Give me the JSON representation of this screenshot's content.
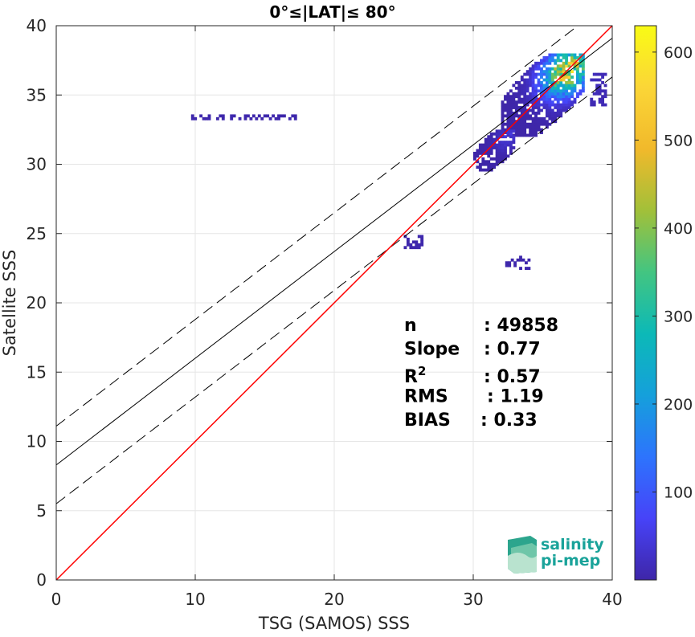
{
  "chart_data": {
    "type": "heatmap",
    "title": "0°≤|LAT|≤ 80°",
    "xlabel": "TSG (SAMOS) SSS",
    "ylabel": "Satellite SSS",
    "xlim": [
      0,
      40
    ],
    "ylim": [
      0,
      40
    ],
    "xticks": [
      0,
      10,
      20,
      30,
      40
    ],
    "yticks": [
      0,
      5,
      10,
      15,
      20,
      25,
      30,
      35,
      40
    ],
    "grid": true,
    "colorbar": {
      "ticks": [
        100,
        200,
        300,
        400,
        500,
        600
      ],
      "range": [
        0,
        630
      ],
      "colormap": [
        "#3e26a8",
        "#4743f8",
        "#2d74fd",
        "#15a0db",
        "#0cb9b7",
        "#43c581",
        "#a2c039",
        "#f1b92b",
        "#fbd637",
        "#f9fb15"
      ]
    },
    "stats": [
      {
        "name": "n",
        "value": "49858"
      },
      {
        "name": "Slope",
        "value": "0.77"
      },
      {
        "name": "R",
        "sup": "2",
        "value": "0.57"
      },
      {
        "name": "RMS",
        "value": "1.19"
      },
      {
        "name": "BIAS",
        "value": "0.33"
      }
    ],
    "lines": {
      "identity": {
        "color": "#ff0000",
        "x": [
          0,
          40
        ],
        "y": [
          0,
          40
        ]
      },
      "regression": {
        "color": "#000000",
        "intercept": 8.3,
        "slope": 0.77
      },
      "regression_upper": {
        "color": "#000000",
        "style": "dashed",
        "intercept": 11.1,
        "slope": 0.77
      },
      "regression_lower": {
        "color": "#000000",
        "style": "dashed",
        "intercept": 5.5,
        "slope": 0.77
      }
    },
    "density_clusters": [
      {
        "x_range": [
          32.0,
          38.0
        ],
        "y_range": [
          32.0,
          38.0
        ],
        "peak": 630
      },
      {
        "x_range": [
          30.0,
          33.0
        ],
        "y_range": [
          29.5,
          32.5
        ],
        "peak": 60
      },
      {
        "x_range": [
          9.7,
          17.5
        ],
        "y_range": [
          33.2,
          33.5
        ],
        "peak": 10
      },
      {
        "x_range": [
          25.0,
          26.2
        ],
        "y_range": [
          23.9,
          24.7
        ],
        "peak": 10
      },
      {
        "x_range": [
          32.3,
          34.0
        ],
        "y_range": [
          22.4,
          23.2
        ],
        "peak": 10
      },
      {
        "x_range": [
          38.4,
          39.5
        ],
        "y_range": [
          34.2,
          36.5
        ],
        "peak": 30
      }
    ]
  },
  "logo": {
    "line1": "salinity",
    "line2": "pi-mep"
  }
}
